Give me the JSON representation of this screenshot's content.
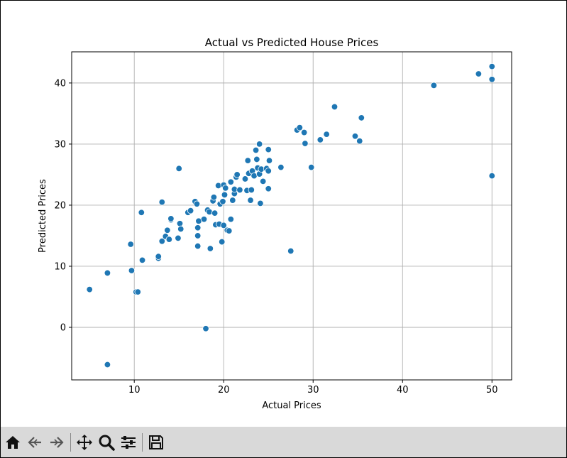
{
  "chart_data": {
    "type": "scatter",
    "title": "Actual vs Predicted House Prices",
    "xlabel": "Actual Prices",
    "ylabel": "Predicted Prices",
    "xlim": [
      3.0,
      52.2
    ],
    "ylim": [
      -8.6,
      45.1
    ],
    "xticks": [
      10,
      20,
      30,
      40,
      50
    ],
    "yticks": [
      0,
      10,
      20,
      30,
      40
    ],
    "grid": true,
    "marker_color": "#1f77b4",
    "series": [
      {
        "points": [
          [
            5.0,
            6.2
          ],
          [
            7.0,
            8.9
          ],
          [
            7.0,
            -6.1
          ],
          [
            9.6,
            13.6
          ],
          [
            9.7,
            9.3
          ],
          [
            10.2,
            5.8
          ],
          [
            10.4,
            5.8
          ],
          [
            10.8,
            18.8
          ],
          [
            10.9,
            11.0
          ],
          [
            12.7,
            11.3
          ],
          [
            12.7,
            11.6
          ],
          [
            13.1,
            14.1
          ],
          [
            13.1,
            20.5
          ],
          [
            13.5,
            14.9
          ],
          [
            13.7,
            15.9
          ],
          [
            13.9,
            14.4
          ],
          [
            14.1,
            17.6
          ],
          [
            14.1,
            17.8
          ],
          [
            14.9,
            14.6
          ],
          [
            15.0,
            26.0
          ],
          [
            15.1,
            17.0
          ],
          [
            15.2,
            16.1
          ],
          [
            16.0,
            18.8
          ],
          [
            16.3,
            19.1
          ],
          [
            16.8,
            20.6
          ],
          [
            17.0,
            20.2
          ],
          [
            17.1,
            13.3
          ],
          [
            17.1,
            15.0
          ],
          [
            17.1,
            16.3
          ],
          [
            17.2,
            17.4
          ],
          [
            17.8,
            17.7
          ],
          [
            18.0,
            -0.2
          ],
          [
            18.2,
            19.2
          ],
          [
            18.4,
            18.9
          ],
          [
            18.5,
            12.9
          ],
          [
            18.8,
            20.7
          ],
          [
            18.9,
            21.3
          ],
          [
            19.0,
            18.7
          ],
          [
            19.1,
            16.8
          ],
          [
            19.4,
            23.2
          ],
          [
            19.5,
            16.9
          ],
          [
            19.6,
            20.2
          ],
          [
            19.8,
            14.0
          ],
          [
            19.9,
            20.6
          ],
          [
            20.0,
            23.3
          ],
          [
            20.0,
            16.7
          ],
          [
            20.1,
            21.7
          ],
          [
            20.2,
            22.8
          ],
          [
            20.4,
            15.9
          ],
          [
            20.6,
            15.8
          ],
          [
            20.8,
            23.8
          ],
          [
            20.8,
            17.7
          ],
          [
            21.0,
            20.8
          ],
          [
            21.2,
            21.9
          ],
          [
            21.2,
            22.6
          ],
          [
            21.4,
            24.6
          ],
          [
            21.5,
            25.0
          ],
          [
            21.8,
            22.5
          ],
          [
            22.4,
            24.3
          ],
          [
            22.6,
            22.4
          ],
          [
            22.8,
            25.2
          ],
          [
            22.7,
            27.3
          ],
          [
            23.0,
            20.8
          ],
          [
            23.1,
            22.5
          ],
          [
            23.2,
            25.6
          ],
          [
            23.4,
            24.8
          ],
          [
            23.6,
            29.0
          ],
          [
            23.7,
            27.5
          ],
          [
            23.8,
            26.1
          ],
          [
            24.0,
            25.1
          ],
          [
            24.0,
            30.0
          ],
          [
            24.1,
            20.3
          ],
          [
            24.2,
            25.9
          ],
          [
            24.4,
            23.9
          ],
          [
            24.8,
            26.0
          ],
          [
            25.0,
            29.1
          ],
          [
            25.0,
            25.6
          ],
          [
            25.0,
            22.7
          ],
          [
            25.1,
            27.3
          ],
          [
            26.4,
            26.2
          ],
          [
            27.5,
            12.5
          ],
          [
            28.2,
            32.3
          ],
          [
            28.5,
            32.7
          ],
          [
            29.0,
            31.9
          ],
          [
            29.1,
            30.1
          ],
          [
            29.8,
            26.2
          ],
          [
            30.8,
            30.7
          ],
          [
            31.5,
            31.6
          ],
          [
            32.4,
            36.1
          ],
          [
            34.7,
            31.3
          ],
          [
            35.2,
            30.5
          ],
          [
            35.4,
            34.3
          ],
          [
            43.5,
            39.6
          ],
          [
            48.5,
            41.5
          ],
          [
            50.0,
            42.7
          ],
          [
            50.0,
            40.6
          ],
          [
            50.0,
            24.8
          ]
        ]
      }
    ]
  },
  "toolbar": {
    "buttons": [
      {
        "name": "home-icon",
        "title": "Home"
      },
      {
        "name": "back-icon",
        "title": "Back"
      },
      {
        "name": "forward-icon",
        "title": "Forward"
      },
      {
        "name": "pan-icon",
        "title": "Pan"
      },
      {
        "name": "zoom-icon",
        "title": "Zoom"
      },
      {
        "name": "configure-subplots-icon",
        "title": "Configure subplots"
      },
      {
        "name": "save-icon",
        "title": "Save"
      }
    ]
  }
}
